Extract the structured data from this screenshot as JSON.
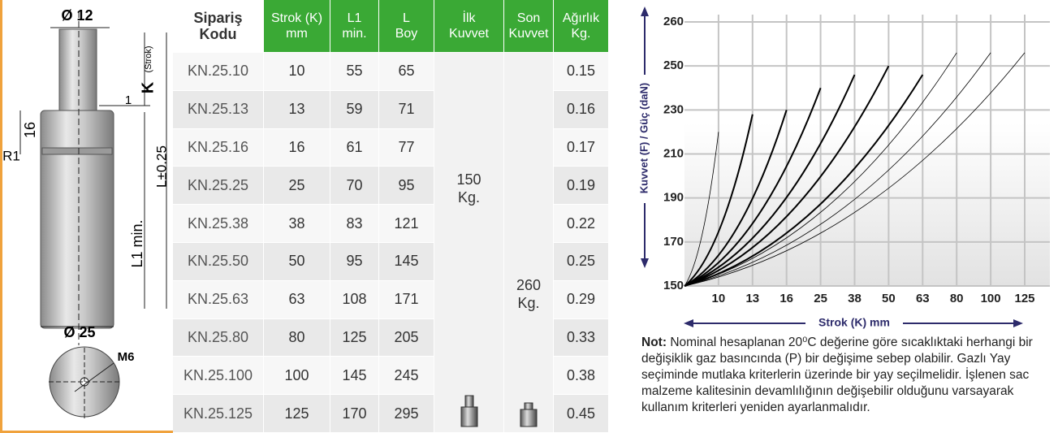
{
  "drawing": {
    "labels": [
      "Ø 12",
      "K",
      "(Strok)",
      "1",
      "16",
      "R1",
      "L±0.25",
      "L1 min.",
      "Ø 25",
      "M6"
    ]
  },
  "table": {
    "headers": [
      [
        "Sipariş",
        "Kodu"
      ],
      [
        "Strok (K)",
        "mm"
      ],
      [
        "L1",
        "min."
      ],
      [
        "L",
        "Boy"
      ],
      [
        "İlk",
        "Kuvvet"
      ],
      [
        "Son",
        "Kuvvet"
      ],
      [
        "Ağırlık",
        "Kg."
      ]
    ],
    "rows": [
      [
        "KN.25.10",
        10,
        55,
        65,
        0.15
      ],
      [
        "KN.25.13",
        13,
        59,
        71,
        0.16
      ],
      [
        "KN.25.16",
        16,
        61,
        77,
        0.17
      ],
      [
        "KN.25.25",
        25,
        70,
        95,
        0.19
      ],
      [
        "KN.25.38",
        38,
        83,
        121,
        0.22
      ],
      [
        "KN.25.50",
        50,
        95,
        145,
        0.25
      ],
      [
        "KN.25.63",
        63,
        108,
        171,
        0.29
      ],
      [
        "KN.25.80",
        80,
        125,
        205,
        0.33
      ],
      [
        "KN.25.100",
        100,
        145,
        245,
        0.38
      ],
      [
        "KN.25.125",
        125,
        170,
        295,
        0.45
      ]
    ],
    "first_force": {
      "value": 150,
      "unit": "Kg."
    },
    "last_force": {
      "value": 260,
      "unit": "Kg."
    }
  },
  "chart_data": {
    "type": "line",
    "x_label": "Strok (K) mm",
    "y_label": "Kuvvet (F) / Güç (daN)",
    "xlim": [
      0,
      125
    ],
    "xticks": [
      10,
      13,
      16,
      25,
      38,
      50,
      63,
      80,
      100,
      125
    ],
    "ylim": [
      150,
      260
    ],
    "yticks": [
      150,
      170,
      190,
      210,
      230,
      250,
      260
    ],
    "grid": true,
    "series": [
      {
        "x": [
          0,
          10
        ],
        "values": [
          150,
          220
        ],
        "color": "#000000",
        "width": 0.8
      },
      {
        "x": [
          0,
          13
        ],
        "values": [
          150,
          228
        ],
        "color": "#000000",
        "width": 2
      },
      {
        "x": [
          0,
          16
        ],
        "values": [
          150,
          230
        ],
        "color": "#000000",
        "width": 2
      },
      {
        "x": [
          0,
          25
        ],
        "values": [
          150,
          240
        ],
        "color": "#000000",
        "width": 2
      },
      {
        "x": [
          0,
          38
        ],
        "values": [
          150,
          246
        ],
        "color": "#000000",
        "width": 2
      },
      {
        "x": [
          0,
          50
        ],
        "values": [
          150,
          250
        ],
        "color": "#000000",
        "width": 2
      },
      {
        "x": [
          0,
          63
        ],
        "values": [
          150,
          246
        ],
        "color": "#000000",
        "width": 2
      },
      {
        "x": [
          0,
          80
        ],
        "values": [
          150,
          253
        ],
        "color": "#000000",
        "width": 0.8
      },
      {
        "x": [
          0,
          100
        ],
        "values": [
          150,
          253
        ],
        "color": "#000000",
        "width": 0.8
      },
      {
        "x": [
          0,
          125
        ],
        "values": [
          150,
          253
        ],
        "color": "#000000",
        "width": 0.8
      }
    ]
  },
  "note": {
    "label": "Not:",
    "text": "Nominal hesaplanan 20⁰C değerine göre sıcaklıktaki herhangi bir değişiklik gaz basıncında (P) bir değişime sebep olabilir. Gazlı Yay seçiminde mutlaka kriterlerin üzerinde bir yay seçilmelidir. İşlenen sac malzeme kalitesinin devamlılığının değişebilir olduğunu varsayarak kullanım kriterleri yeniden ayarlanmalıdır."
  }
}
